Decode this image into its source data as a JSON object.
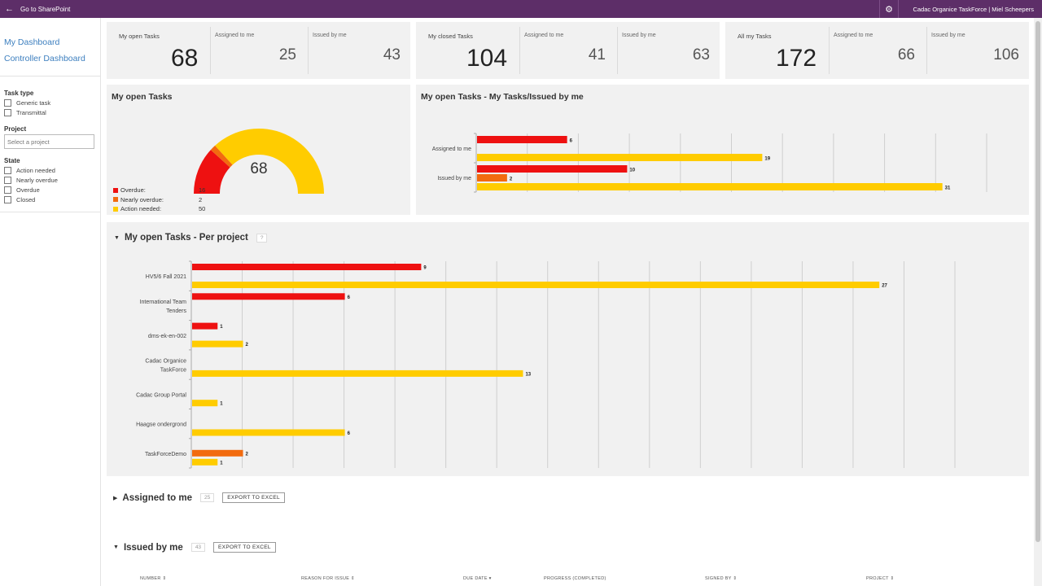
{
  "topbar": {
    "back_label": "Go to SharePoint",
    "gear_icon": "gear-icon",
    "site_label": "Cadac Organice TaskForce | Miel Scheepers"
  },
  "sidebar": {
    "nav": [
      "My Dashboard",
      "Controller Dashboard"
    ],
    "task_type": {
      "label": "Task type",
      "options": [
        "Generic task",
        "Transmittal"
      ]
    },
    "project": {
      "label": "Project",
      "placeholder": "Select a project"
    },
    "state": {
      "label": "State",
      "options": [
        "Action needed",
        "Nearly overdue",
        "Overdue",
        "Closed"
      ]
    }
  },
  "kpis": [
    {
      "title": "My open Tasks",
      "value": "68",
      "assigned_label": "Assigned to me",
      "assigned": "25",
      "issued_label": "Issued by me",
      "issued": "43"
    },
    {
      "title": "My closed Tasks",
      "value": "104",
      "assigned_label": "Assigned to me",
      "assigned": "41",
      "issued_label": "Issued by me",
      "issued": "63"
    },
    {
      "title": "All my Tasks",
      "value": "172",
      "assigned_label": "Assigned to me",
      "assigned": "66",
      "issued_label": "Issued by me",
      "issued": "106"
    }
  ],
  "colors": {
    "overdue": "#ee1111",
    "nearly": "#f26b0f",
    "action": "#ffcc00"
  },
  "gauge": {
    "title": "My open Tasks",
    "total": "68",
    "legend": [
      {
        "name": "Overdue:",
        "value": "16",
        "color": "#ee1111"
      },
      {
        "name": "Nearly overdue:",
        "value": "2",
        "color": "#f26b0f"
      },
      {
        "name": "Action needed:",
        "value": "50",
        "color": "#ffcc00"
      }
    ]
  },
  "chart_data": [
    {
      "type": "bar",
      "title": "My open Tasks - My Tasks/Issued by me",
      "orientation": "horizontal",
      "categories": [
        "Assigned to me",
        "Issued by me"
      ],
      "series": [
        {
          "color": "#ee1111",
          "values": [
            6,
            10
          ]
        },
        {
          "color": "#f26b0f",
          "values": [
            0,
            2
          ]
        },
        {
          "color": "#ffcc00",
          "values": [
            19,
            31
          ]
        }
      ],
      "xlim": [
        0,
        34
      ],
      "grid": true
    },
    {
      "type": "bar",
      "title": "My open Tasks - Per project",
      "orientation": "horizontal",
      "categories": [
        "HV5/6 Fall 2021",
        "International Team Tenders",
        "dms-ek-en-002",
        "Cadac Organice TaskForce",
        "Cadac Group Portal",
        "Haagse ondergrond",
        "TaskForceDemo"
      ],
      "series": [
        {
          "color": "#ee1111",
          "values": [
            9,
            6,
            1,
            0,
            0,
            0,
            0
          ]
        },
        {
          "color": "#f26b0f",
          "values": [
            0,
            0,
            0,
            0,
            0,
            0,
            2
          ]
        },
        {
          "color": "#ffcc00",
          "values": [
            27,
            0,
            2,
            13,
            1,
            6,
            1
          ]
        }
      ],
      "xlim": [
        0,
        30
      ],
      "grid": true
    }
  ],
  "per_project": {
    "help_icon_label": "?"
  },
  "sections": {
    "assigned": {
      "title": "Assigned to me",
      "count": "25",
      "export_label": "EXPORT TO EXCEL"
    },
    "issued": {
      "title": "Issued by me",
      "count": "43",
      "export_label": "EXPORT TO EXCEL"
    }
  },
  "table": {
    "columns": [
      "NUMBER ⇕",
      "REASON FOR ISSUE ⇕",
      "DUE DATE ▾",
      "PROGRESS (COMPLETED)",
      "SIGNED BY ⇕",
      "PROJECT ⇕"
    ]
  }
}
